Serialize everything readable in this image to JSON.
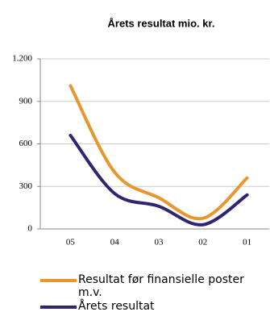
{
  "chart_data": {
    "type": "line",
    "title": "Årets resultat mio. kr.",
    "categories": [
      "05",
      "04",
      "03",
      "02",
      "01"
    ],
    "series": [
      {
        "name": "Resultat før finansielle poster m.v.",
        "color": "#e8972e",
        "values": [
          1010,
          400,
          220,
          75,
          360
        ]
      },
      {
        "name": "Årets resultat",
        "color": "#2e2670",
        "values": [
          660,
          250,
          160,
          30,
          240
        ]
      }
    ],
    "ylim": [
      0,
      1200
    ],
    "yticks": [
      0,
      300,
      600,
      900,
      {
        "value": 1200,
        "label": "1.200"
      }
    ],
    "grid": true
  }
}
